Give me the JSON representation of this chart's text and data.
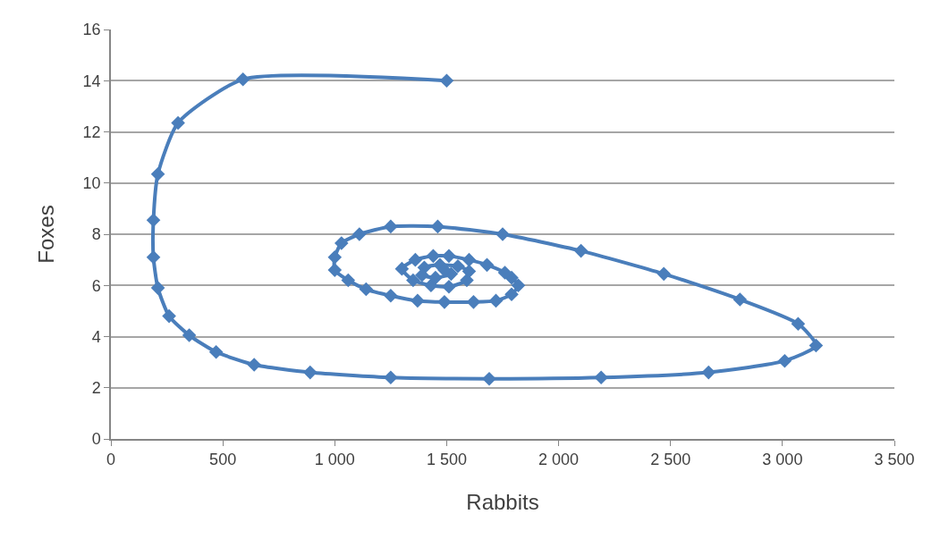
{
  "chart_data": {
    "type": "line",
    "xlabel": "Rabbits",
    "ylabel": "Foxes",
    "xlim": [
      0,
      3500
    ],
    "ylim": [
      0,
      16
    ],
    "xticks": [
      0,
      500,
      {
        "value": 1000,
        "label": "1 000"
      },
      {
        "value": 1500,
        "label": "1 500"
      },
      {
        "value": 2000,
        "label": "2 000"
      },
      {
        "value": 2500,
        "label": "2 500"
      },
      {
        "value": 3000,
        "label": "3 000"
      },
      {
        "value": 3500,
        "label": "3 500"
      }
    ],
    "yticks": [
      0,
      2,
      4,
      6,
      8,
      10,
      12,
      14,
      16
    ],
    "grid": "y",
    "marker": "diamond",
    "line_style": "solid",
    "series": [
      {
        "color": "#4a7ebb",
        "x": [
          1500,
          590,
          300,
          210,
          190,
          190,
          210,
          260,
          350,
          470,
          640,
          890,
          1250,
          1690,
          2190,
          2670,
          3010,
          3150,
          3070,
          2810,
          2470,
          2100,
          1750,
          1460,
          1250,
          1110,
          1030,
          1000,
          1000,
          1060,
          1140,
          1250,
          1370,
          1490,
          1620,
          1720,
          1790,
          1820,
          1790,
          1760,
          1680,
          1600,
          1510,
          1440,
          1360,
          1300,
          1350,
          1430,
          1510,
          1590,
          1600,
          1550,
          1470,
          1400,
          1390,
          1450,
          1520,
          1490
        ],
        "values": [
          14.0,
          14.05,
          12.35,
          10.35,
          8.55,
          7.1,
          5.9,
          4.8,
          4.05,
          3.4,
          2.9,
          2.6,
          2.4,
          2.35,
          2.4,
          2.6,
          3.05,
          3.65,
          4.5,
          5.45,
          6.45,
          7.35,
          8.0,
          8.3,
          8.3,
          8.0,
          7.65,
          7.1,
          6.6,
          6.2,
          5.85,
          5.6,
          5.4,
          5.35,
          5.35,
          5.4,
          5.65,
          6.0,
          6.3,
          6.5,
          6.8,
          7.0,
          7.15,
          7.15,
          7.0,
          6.65,
          6.2,
          6.0,
          5.95,
          6.2,
          6.55,
          6.75,
          6.8,
          6.7,
          6.4,
          6.3,
          6.45,
          6.6
        ]
      }
    ]
  }
}
